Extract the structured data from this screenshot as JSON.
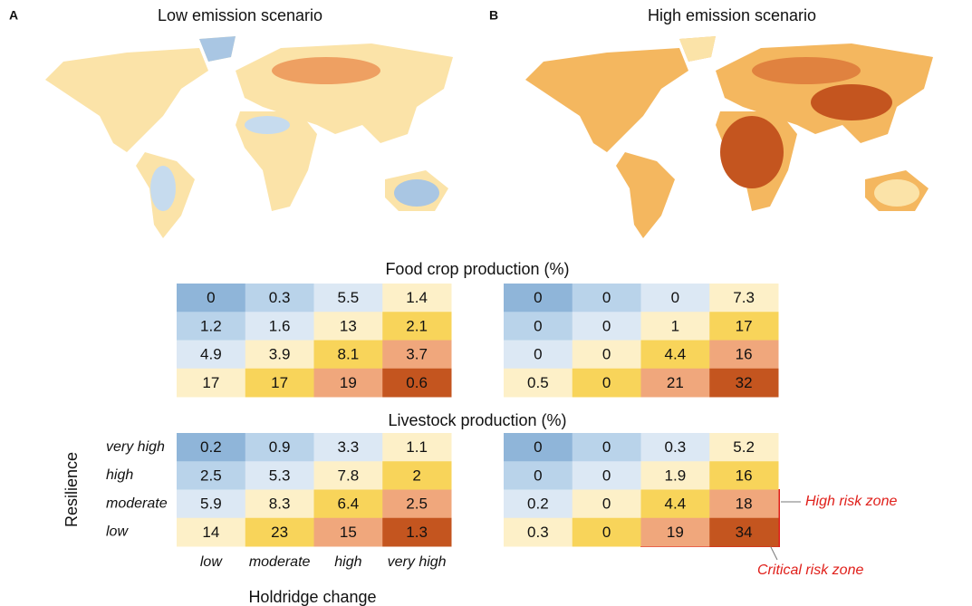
{
  "maps": [
    {
      "label": "A",
      "title": "Low emission scenario"
    },
    {
      "label": "B",
      "title": "High emission scenario"
    }
  ],
  "chart_data": [
    {
      "type": "heatmap",
      "title": "Food crop production (%)",
      "colors": [
        [
          "#8fb5d9",
          "#b9d3ea",
          "#dce8f4",
          "#fdf0c8"
        ],
        [
          "#b9d3ea",
          "#dce8f4",
          "#fdf0c8",
          "#f8d45a"
        ],
        [
          "#dce8f4",
          "#fdf0c8",
          "#f8d45a",
          "#f0a77c"
        ],
        [
          "#fdf0c8",
          "#f8d45a",
          "#f0a77c",
          "#c4551f"
        ]
      ],
      "panels": [
        {
          "values": [
            [
              0,
              0.3,
              5.5,
              1.4
            ],
            [
              1.2,
              1.6,
              13,
              2.1
            ],
            [
              4.9,
              3.9,
              8.1,
              3.7
            ],
            [
              17,
              17,
              19,
              0.6
            ]
          ]
        },
        {
          "values": [
            [
              0,
              0,
              0,
              7.3
            ],
            [
              0,
              0,
              1,
              17
            ],
            [
              0,
              0,
              4.4,
              16
            ],
            [
              0.5,
              0,
              21,
              32
            ]
          ]
        }
      ]
    },
    {
      "type": "heatmap",
      "title": "Livestock production (%)",
      "xlabel": "Holdridge change",
      "ylabel": "Resilience",
      "categories": [
        "low",
        "moderate",
        "high",
        "very high"
      ],
      "y_categories": [
        "very high",
        "high",
        "moderate",
        "low"
      ],
      "colors": [
        [
          "#8fb5d9",
          "#b9d3ea",
          "#dce8f4",
          "#fdf0c8"
        ],
        [
          "#b9d3ea",
          "#dce8f4",
          "#fdf0c8",
          "#f8d45a"
        ],
        [
          "#dce8f4",
          "#fdf0c8",
          "#f8d45a",
          "#f0a77c"
        ],
        [
          "#fdf0c8",
          "#f8d45a",
          "#f0a77c",
          "#c4551f"
        ]
      ],
      "panels": [
        {
          "values": [
            [
              0.2,
              0.9,
              3.3,
              1.1
            ],
            [
              2.5,
              5.3,
              7.8,
              2
            ],
            [
              5.9,
              8.3,
              6.4,
              2.5
            ],
            [
              14,
              23,
              15,
              1.3
            ]
          ]
        },
        {
          "values": [
            [
              0,
              0,
              0.3,
              5.2
            ],
            [
              0,
              0,
              1.9,
              16
            ],
            [
              0.2,
              0,
              4.4,
              18
            ],
            [
              0.3,
              0,
              19,
              34
            ]
          ]
        }
      ],
      "annotations": [
        "High risk zone",
        "Critical risk zone"
      ]
    }
  ]
}
